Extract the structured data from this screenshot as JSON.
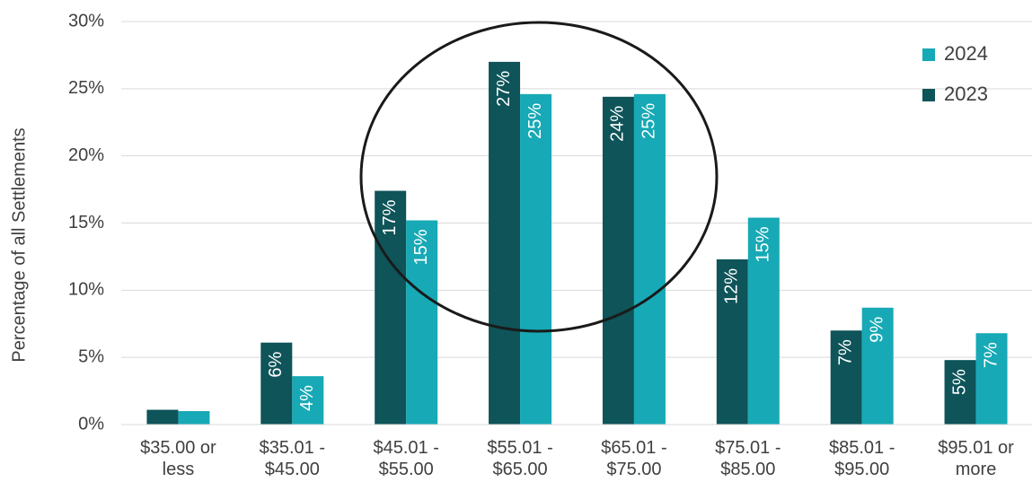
{
  "chart_data": {
    "type": "bar",
    "y_label": "Percentage of all Settlements",
    "categories": [
      "$35.00 or\nless",
      "$35.01 -\n$45.00",
      "$45.01 -\n$55.00",
      "$55.01 -\n$65.00",
      "$65.01 -\n$75.00",
      "$75.01 -\n$85.00",
      "$85.01 -\n$95.00",
      "$95.01 or\nmore"
    ],
    "series": [
      {
        "name": "2023",
        "color": "#0e5459",
        "values": [
          1.1,
          6.1,
          17.4,
          27.0,
          24.4,
          12.3,
          7.0,
          4.8
        ],
        "value_labels": [
          null,
          "6%",
          "17%",
          "27%",
          "24%",
          "12%",
          "7%",
          "5%"
        ]
      },
      {
        "name": "2024",
        "color": "#17a9b5",
        "values": [
          1.0,
          3.6,
          15.2,
          24.6,
          24.6,
          15.4,
          8.7,
          6.8
        ],
        "value_labels": [
          null,
          "4%",
          "15%",
          "25%",
          "25%",
          "15%",
          "9%",
          "7%"
        ]
      }
    ],
    "ylim": [
      0,
      30
    ],
    "yticks": [
      {
        "value": 0,
        "label": "0%"
      },
      {
        "value": 5,
        "label": "5%"
      },
      {
        "value": 10,
        "label": "10%"
      },
      {
        "value": 15,
        "label": "15%"
      },
      {
        "value": 20,
        "label": "20%"
      },
      {
        "value": 25,
        "label": "25%"
      },
      {
        "value": 30,
        "label": "30%"
      }
    ],
    "grid": true
  }
}
